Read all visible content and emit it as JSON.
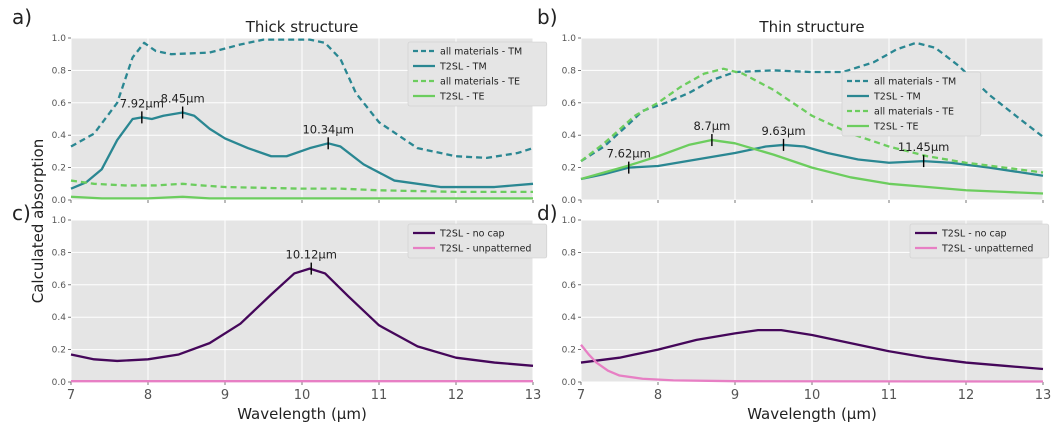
{
  "shared": {
    "ylabel": "Calculated absorption",
    "xlabel": "Wavelength (μm)"
  },
  "colors": {
    "teal": "#2a8792",
    "green": "#6ccd5e",
    "purple": "#45075a",
    "pink": "#e77fc4",
    "panel_bg": "#e5e5e5",
    "grid": "#ffffff"
  },
  "chart_data": [
    {
      "id": "a",
      "panel_label": "a)",
      "title": "Thick structure",
      "type": "line",
      "xlim": [
        7,
        13
      ],
      "ylim": [
        0,
        1.0
      ],
      "xticks": [
        7,
        8,
        9,
        10,
        11,
        12,
        13
      ],
      "yticks": [
        0.0,
        0.2,
        0.4,
        0.6,
        0.8,
        1.0
      ],
      "grid": true,
      "show_xticklabels": false,
      "legend_position": "top-right",
      "series": [
        {
          "name": "all materials - TM",
          "color": "#2a8792",
          "dash": "dashed",
          "points": [
            [
              7.0,
              0.33
            ],
            [
              7.3,
              0.41
            ],
            [
              7.6,
              0.6
            ],
            [
              7.8,
              0.88
            ],
            [
              7.95,
              0.97
            ],
            [
              8.1,
              0.92
            ],
            [
              8.3,
              0.9
            ],
            [
              8.8,
              0.91
            ],
            [
              9.2,
              0.96
            ],
            [
              9.5,
              0.99
            ],
            [
              9.8,
              0.99
            ],
            [
              10.1,
              0.99
            ],
            [
              10.3,
              0.97
            ],
            [
              10.5,
              0.87
            ],
            [
              10.7,
              0.66
            ],
            [
              11.0,
              0.48
            ],
            [
              11.5,
              0.32
            ],
            [
              12.0,
              0.27
            ],
            [
              12.4,
              0.26
            ],
            [
              12.8,
              0.29
            ],
            [
              13.0,
              0.32
            ]
          ]
        },
        {
          "name": "T2SL - TM",
          "color": "#2a8792",
          "dash": "solid",
          "points": [
            [
              7.0,
              0.07
            ],
            [
              7.2,
              0.11
            ],
            [
              7.4,
              0.19
            ],
            [
              7.6,
              0.37
            ],
            [
              7.8,
              0.5
            ],
            [
              7.92,
              0.51
            ],
            [
              8.05,
              0.5
            ],
            [
              8.2,
              0.52
            ],
            [
              8.45,
              0.54
            ],
            [
              8.6,
              0.52
            ],
            [
              8.8,
              0.44
            ],
            [
              9.0,
              0.38
            ],
            [
              9.3,
              0.32
            ],
            [
              9.6,
              0.27
            ],
            [
              9.8,
              0.27
            ],
            [
              10.1,
              0.32
            ],
            [
              10.34,
              0.35
            ],
            [
              10.5,
              0.33
            ],
            [
              10.8,
              0.22
            ],
            [
              11.2,
              0.12
            ],
            [
              11.8,
              0.08
            ],
            [
              12.5,
              0.08
            ],
            [
              13.0,
              0.1
            ]
          ]
        },
        {
          "name": "all materials - TE",
          "color": "#6ccd5e",
          "dash": "dashed",
          "points": [
            [
              7.0,
              0.12
            ],
            [
              7.3,
              0.1
            ],
            [
              7.7,
              0.09
            ],
            [
              8.1,
              0.09
            ],
            [
              8.45,
              0.1
            ],
            [
              8.7,
              0.09
            ],
            [
              9.0,
              0.08
            ],
            [
              10.0,
              0.07
            ],
            [
              10.5,
              0.07
            ],
            [
              11.0,
              0.06
            ],
            [
              12.0,
              0.05
            ],
            [
              13.0,
              0.05
            ]
          ]
        },
        {
          "name": "T2SL - TE",
          "color": "#6ccd5e",
          "dash": "solid",
          "points": [
            [
              7.0,
              0.02
            ],
            [
              7.4,
              0.01
            ],
            [
              8.0,
              0.01
            ],
            [
              8.45,
              0.02
            ],
            [
              8.8,
              0.01
            ],
            [
              9.5,
              0.01
            ],
            [
              10.3,
              0.01
            ],
            [
              11.0,
              0.01
            ],
            [
              12.0,
              0.01
            ],
            [
              13.0,
              0.01
            ]
          ]
        }
      ],
      "annotations": [
        {
          "text": "7.92μm",
          "x": 7.92,
          "y": 0.51
        },
        {
          "text": "8.45μm",
          "x": 8.45,
          "y": 0.54
        },
        {
          "text": "10.34μm",
          "x": 10.34,
          "y": 0.35
        }
      ]
    },
    {
      "id": "b",
      "panel_label": "b)",
      "title": "Thin structure",
      "type": "line",
      "xlim": [
        7,
        13
      ],
      "ylim": [
        0,
        1.0
      ],
      "xticks": [
        7,
        8,
        9,
        10,
        11,
        12,
        13
      ],
      "yticks": [
        0.0,
        0.2,
        0.4,
        0.6,
        0.8,
        1.0
      ],
      "grid": true,
      "show_xticklabels": false,
      "legend_position": "center-right",
      "series": [
        {
          "name": "all materials - TM",
          "color": "#2a8792",
          "dash": "dashed",
          "points": [
            [
              7.0,
              0.24
            ],
            [
              7.3,
              0.33
            ],
            [
              7.6,
              0.46
            ],
            [
              7.8,
              0.55
            ],
            [
              8.1,
              0.6
            ],
            [
              8.4,
              0.66
            ],
            [
              8.7,
              0.74
            ],
            [
              9.0,
              0.79
            ],
            [
              9.5,
              0.8
            ],
            [
              10.0,
              0.79
            ],
            [
              10.4,
              0.79
            ],
            [
              10.8,
              0.85
            ],
            [
              11.1,
              0.93
            ],
            [
              11.35,
              0.97
            ],
            [
              11.6,
              0.94
            ],
            [
              11.9,
              0.83
            ],
            [
              12.3,
              0.65
            ],
            [
              12.7,
              0.5
            ],
            [
              13.0,
              0.39
            ]
          ]
        },
        {
          "name": "T2SL - TM",
          "color": "#2a8792",
          "dash": "solid",
          "points": [
            [
              7.0,
              0.13
            ],
            [
              7.3,
              0.16
            ],
            [
              7.62,
              0.2
            ],
            [
              8.0,
              0.21
            ],
            [
              8.5,
              0.25
            ],
            [
              9.0,
              0.29
            ],
            [
              9.4,
              0.33
            ],
            [
              9.63,
              0.34
            ],
            [
              9.9,
              0.33
            ],
            [
              10.2,
              0.29
            ],
            [
              10.6,
              0.25
            ],
            [
              11.0,
              0.23
            ],
            [
              11.45,
              0.24
            ],
            [
              11.8,
              0.23
            ],
            [
              12.3,
              0.2
            ],
            [
              13.0,
              0.15
            ]
          ]
        },
        {
          "name": "all materials - TE",
          "color": "#6ccd5e",
          "dash": "dashed",
          "points": [
            [
              7.0,
              0.24
            ],
            [
              7.3,
              0.35
            ],
            [
              7.7,
              0.52
            ],
            [
              8.0,
              0.6
            ],
            [
              8.3,
              0.7
            ],
            [
              8.6,
              0.78
            ],
            [
              8.85,
              0.81
            ],
            [
              9.1,
              0.78
            ],
            [
              9.5,
              0.68
            ],
            [
              10.0,
              0.52
            ],
            [
              10.5,
              0.41
            ],
            [
              11.0,
              0.33
            ],
            [
              11.5,
              0.27
            ],
            [
              12.0,
              0.23
            ],
            [
              12.5,
              0.2
            ],
            [
              13.0,
              0.17
            ]
          ]
        },
        {
          "name": "T2SL - TE",
          "color": "#6ccd5e",
          "dash": "solid",
          "points": [
            [
              7.0,
              0.13
            ],
            [
              7.3,
              0.17
            ],
            [
              7.6,
              0.21
            ],
            [
              8.0,
              0.27
            ],
            [
              8.4,
              0.34
            ],
            [
              8.7,
              0.37
            ],
            [
              9.0,
              0.35
            ],
            [
              9.5,
              0.28
            ],
            [
              10.0,
              0.2
            ],
            [
              10.5,
              0.14
            ],
            [
              11.0,
              0.1
            ],
            [
              11.5,
              0.08
            ],
            [
              12.0,
              0.06
            ],
            [
              12.5,
              0.05
            ],
            [
              13.0,
              0.04
            ]
          ]
        }
      ],
      "annotations": [
        {
          "text": "7.62μm",
          "x": 7.62,
          "y": 0.2
        },
        {
          "text": "8.7μm",
          "x": 8.7,
          "y": 0.37
        },
        {
          "text": "9.63μm",
          "x": 9.63,
          "y": 0.34
        },
        {
          "text": "11.45μm",
          "x": 11.45,
          "y": 0.24
        }
      ]
    },
    {
      "id": "c",
      "panel_label": "c)",
      "title": "",
      "type": "line",
      "xlim": [
        7,
        13
      ],
      "ylim": [
        0,
        1.0
      ],
      "xticks": [
        7,
        8,
        9,
        10,
        11,
        12,
        13
      ],
      "yticks": [
        0.0,
        0.2,
        0.4,
        0.6,
        0.8,
        1.0
      ],
      "grid": true,
      "show_xticklabels": true,
      "legend_position": "top-right",
      "series": [
        {
          "name": "T2SL - no cap",
          "color": "#45075a",
          "dash": "solid",
          "points": [
            [
              7.0,
              0.17
            ],
            [
              7.3,
              0.14
            ],
            [
              7.6,
              0.13
            ],
            [
              8.0,
              0.14
            ],
            [
              8.4,
              0.17
            ],
            [
              8.8,
              0.24
            ],
            [
              9.2,
              0.36
            ],
            [
              9.6,
              0.54
            ],
            [
              9.9,
              0.67
            ],
            [
              10.1,
              0.7
            ],
            [
              10.3,
              0.67
            ],
            [
              10.6,
              0.53
            ],
            [
              11.0,
              0.35
            ],
            [
              11.5,
              0.22
            ],
            [
              12.0,
              0.15
            ],
            [
              12.5,
              0.12
            ],
            [
              13.0,
              0.1
            ]
          ]
        },
        {
          "name": "T2SL - unpatterned",
          "color": "#e77fc4",
          "dash": "solid",
          "points": [
            [
              7.0,
              0.005
            ],
            [
              13.0,
              0.005
            ]
          ]
        }
      ],
      "annotations": [
        {
          "text": "10.12μm",
          "x": 10.12,
          "y": 0.7
        }
      ]
    },
    {
      "id": "d",
      "panel_label": "d)",
      "title": "",
      "type": "line",
      "xlim": [
        7,
        13
      ],
      "ylim": [
        0,
        1.0
      ],
      "xticks": [
        7,
        8,
        9,
        10,
        11,
        12,
        13
      ],
      "yticks": [
        0.0,
        0.2,
        0.4,
        0.6,
        0.8,
        1.0
      ],
      "grid": true,
      "show_xticklabels": true,
      "legend_position": "top-right",
      "series": [
        {
          "name": "T2SL - no cap",
          "color": "#45075a",
          "dash": "solid",
          "points": [
            [
              7.0,
              0.12
            ],
            [
              7.5,
              0.15
            ],
            [
              8.0,
              0.2
            ],
            [
              8.5,
              0.26
            ],
            [
              9.0,
              0.3
            ],
            [
              9.3,
              0.32
            ],
            [
              9.6,
              0.32
            ],
            [
              10.0,
              0.29
            ],
            [
              10.5,
              0.24
            ],
            [
              11.0,
              0.19
            ],
            [
              11.5,
              0.15
            ],
            [
              12.0,
              0.12
            ],
            [
              12.5,
              0.1
            ],
            [
              13.0,
              0.08
            ]
          ]
        },
        {
          "name": "T2SL - unpatterned",
          "color": "#e77fc4",
          "dash": "solid",
          "points": [
            [
              7.0,
              0.23
            ],
            [
              7.1,
              0.17
            ],
            [
              7.2,
              0.12
            ],
            [
              7.35,
              0.07
            ],
            [
              7.5,
              0.04
            ],
            [
              7.8,
              0.02
            ],
            [
              8.2,
              0.01
            ],
            [
              9.0,
              0.005
            ],
            [
              13.0,
              0.003
            ]
          ]
        }
      ],
      "annotations": []
    }
  ]
}
